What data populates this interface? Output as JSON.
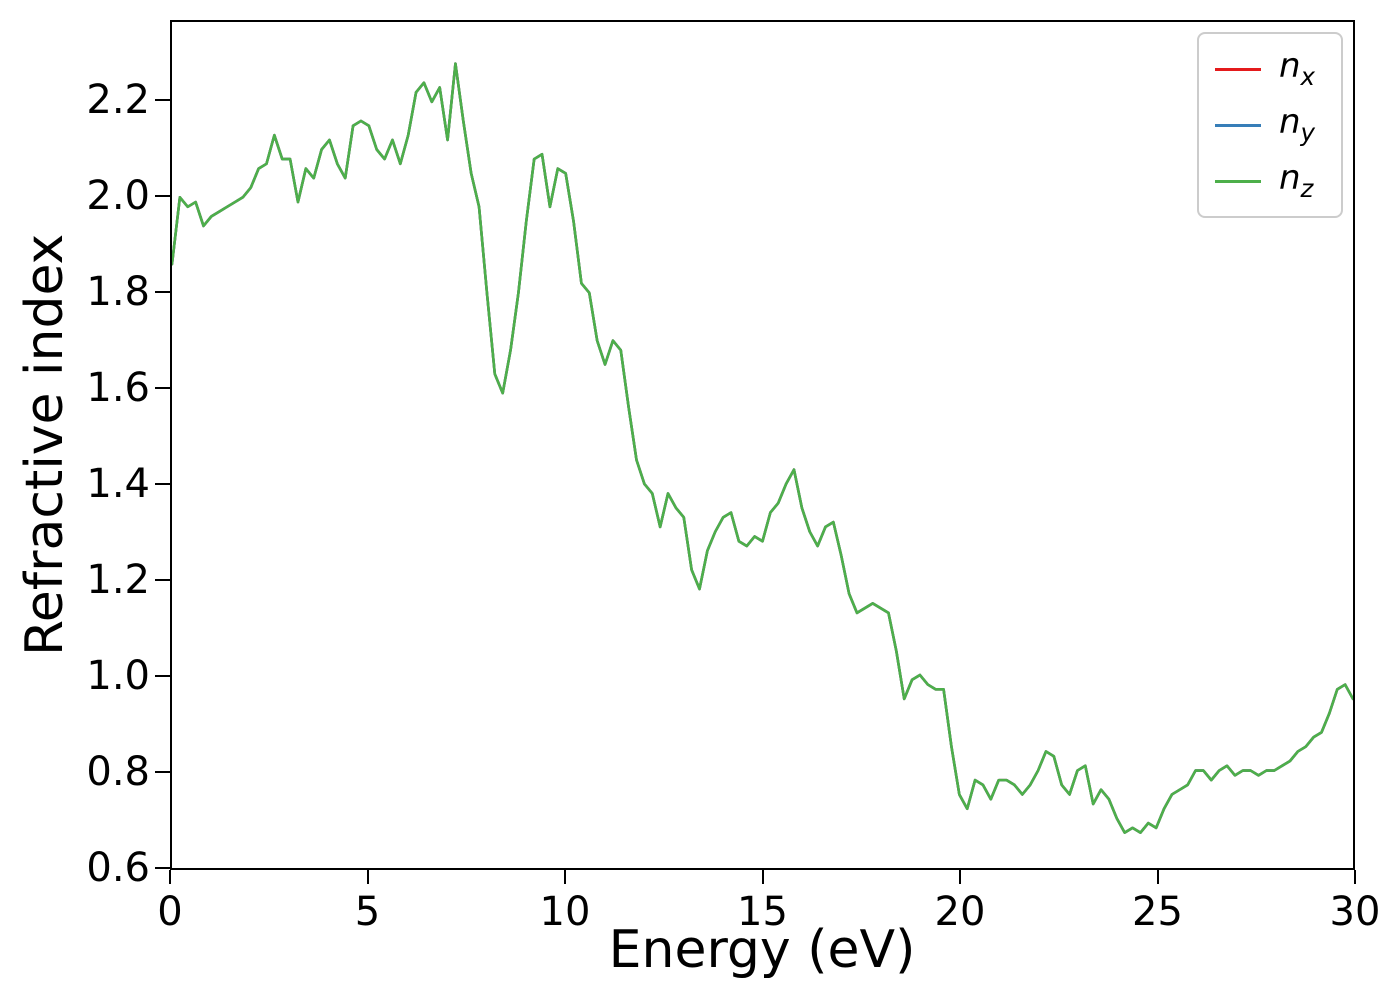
{
  "chart_data": {
    "type": "line",
    "title": "",
    "xlabel": "Energy (eV)",
    "ylabel": "Refractive index",
    "xlim": [
      0,
      30
    ],
    "ylim": [
      0.596,
      2.367
    ],
    "grid": false,
    "legend_position": "upper right",
    "x_ticks": [
      0,
      5,
      10,
      15,
      20,
      25,
      30
    ],
    "x_tick_labels": [
      "0",
      "5",
      "10",
      "15",
      "20",
      "25",
      "30"
    ],
    "y_ticks": [
      0.6,
      0.8,
      1.0,
      1.2,
      1.4,
      1.6,
      1.8,
      2.0,
      2.2
    ],
    "y_tick_labels": [
      "0.6",
      "0.8",
      "1.0",
      "1.2",
      "1.4",
      "1.6",
      "1.8",
      "2.0",
      "2.2"
    ],
    "x_start": 0,
    "x_step": 0.2,
    "overlap_note": "nx, ny and nz curves coincide exactly; only nz (green, drawn last) is visible",
    "shared_values": [
      1.86,
      2.0,
      1.98,
      1.99,
      1.94,
      1.96,
      1.97,
      1.98,
      1.99,
      2.0,
      2.02,
      2.06,
      2.07,
      2.13,
      2.08,
      2.08,
      1.99,
      2.06,
      2.04,
      2.1,
      2.12,
      2.07,
      2.04,
      2.15,
      2.16,
      2.15,
      2.1,
      2.08,
      2.12,
      2.07,
      2.13,
      2.22,
      2.24,
      2.2,
      2.23,
      2.12,
      2.28,
      2.16,
      2.05,
      1.98,
      1.8,
      1.63,
      1.59,
      1.68,
      1.8,
      1.95,
      2.08,
      2.09,
      1.98,
      2.06,
      2.05,
      1.95,
      1.82,
      1.8,
      1.7,
      1.65,
      1.7,
      1.68,
      1.56,
      1.45,
      1.4,
      1.38,
      1.31,
      1.38,
      1.35,
      1.33,
      1.22,
      1.18,
      1.26,
      1.3,
      1.33,
      1.34,
      1.28,
      1.27,
      1.29,
      1.28,
      1.34,
      1.36,
      1.4,
      1.43,
      1.35,
      1.3,
      1.27,
      1.31,
      1.32,
      1.25,
      1.17,
      1.13,
      1.14,
      1.15,
      1.14,
      1.13,
      1.05,
      0.95,
      0.99,
      1.0,
      0.98,
      0.97,
      0.97,
      0.85,
      0.75,
      0.72,
      0.78,
      0.77,
      0.74,
      0.78,
      0.78,
      0.77,
      0.75,
      0.77,
      0.8,
      0.84,
      0.83,
      0.77,
      0.75,
      0.8,
      0.81,
      0.73,
      0.76,
      0.74,
      0.7,
      0.67,
      0.68,
      0.67,
      0.69,
      0.68,
      0.72,
      0.75,
      0.76,
      0.77,
      0.8,
      0.8,
      0.78,
      0.8,
      0.81,
      0.79,
      0.8,
      0.8,
      0.79,
      0.8,
      0.8,
      0.81,
      0.82,
      0.84,
      0.85,
      0.87,
      0.88,
      0.92,
      0.97,
      0.98,
      0.95
    ],
    "series": [
      {
        "name": "n_x",
        "base": "n",
        "sub": "x",
        "color": "#e41a1c",
        "values": []
      },
      {
        "name": "n_y",
        "base": "n",
        "sub": "y",
        "color": "#377eb8",
        "values": []
      },
      {
        "name": "n_z",
        "base": "n",
        "sub": "z",
        "color": "#4daf4a",
        "values": []
      }
    ],
    "legend": {
      "items": [
        {
          "base": "n",
          "sub": "x"
        },
        {
          "base": "n",
          "sub": "y"
        },
        {
          "base": "n",
          "sub": "z"
        }
      ]
    }
  }
}
